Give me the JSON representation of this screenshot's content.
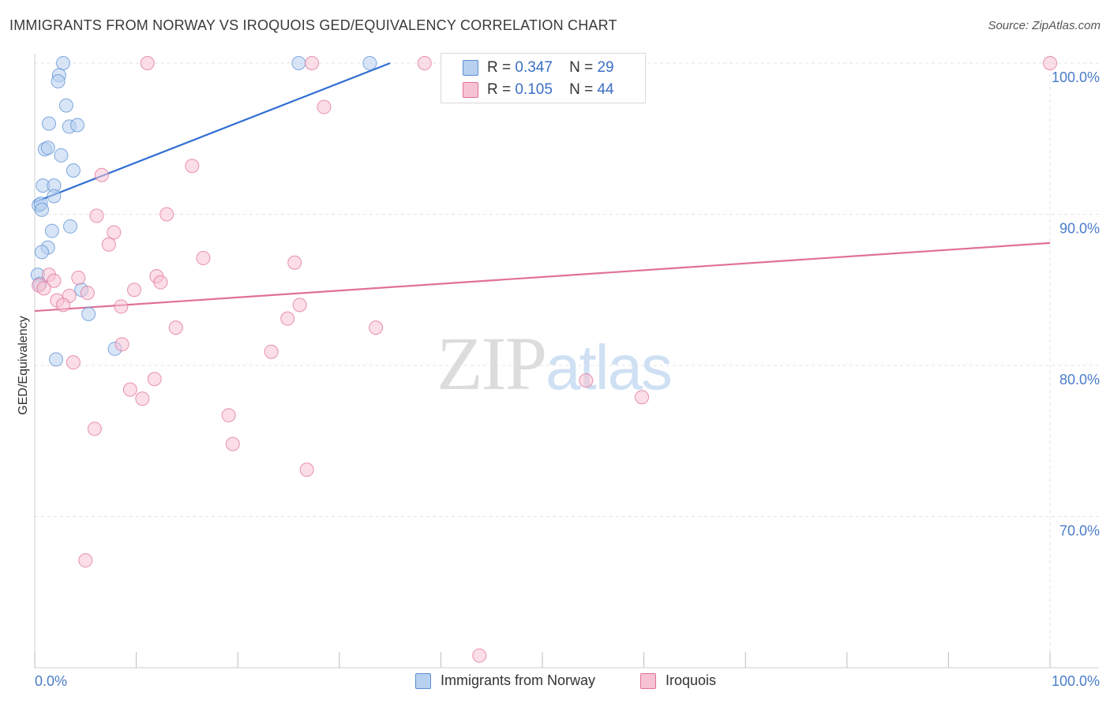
{
  "chart_data": {
    "type": "scatter",
    "title": "IMMIGRANTS FROM NORWAY VS IROQUOIS GED/EQUIVALENCY CORRELATION CHART",
    "source": "Source: ZipAtlas.com",
    "xlabel": "",
    "ylabel": "GED/Equivalency",
    "xlim": [
      0,
      100
    ],
    "ylim": [
      60,
      100
    ],
    "y_ticks": [
      {
        "value": 100,
        "label": "100.0%"
      },
      {
        "value": 90,
        "label": "90.0%"
      },
      {
        "value": 80,
        "label": "80.0%"
      },
      {
        "value": 70,
        "label": "70.0%"
      }
    ],
    "x_tick_labels": {
      "left": "0.0%",
      "right": "100.0%"
    },
    "legend_position": "top-center",
    "series": [
      {
        "name": "Immigrants from Norway",
        "color": "#5b8fd6",
        "fill": "#b7d0ef",
        "R": "0.347",
        "N": "29",
        "trend": {
          "x": [
            0,
            35
          ],
          "y": [
            90.8,
            100.0
          ]
        },
        "points": [
          {
            "x": 2.8,
            "y": 100.0
          },
          {
            "x": 26.0,
            "y": 100.0
          },
          {
            "x": 33.0,
            "y": 100.0
          },
          {
            "x": 2.4,
            "y": 99.2
          },
          {
            "x": 2.3,
            "y": 98.8
          },
          {
            "x": 3.1,
            "y": 97.2
          },
          {
            "x": 1.4,
            "y": 96.0
          },
          {
            "x": 3.4,
            "y": 95.8
          },
          {
            "x": 4.2,
            "y": 95.9
          },
          {
            "x": 1.0,
            "y": 94.3
          },
          {
            "x": 1.3,
            "y": 94.4
          },
          {
            "x": 2.6,
            "y": 93.9
          },
          {
            "x": 3.8,
            "y": 92.9
          },
          {
            "x": 0.8,
            "y": 91.9
          },
          {
            "x": 1.9,
            "y": 91.9
          },
          {
            "x": 1.9,
            "y": 91.2
          },
          {
            "x": 0.4,
            "y": 90.6
          },
          {
            "x": 0.6,
            "y": 90.7
          },
          {
            "x": 0.7,
            "y": 90.3
          },
          {
            "x": 3.5,
            "y": 89.2
          },
          {
            "x": 1.7,
            "y": 88.9
          },
          {
            "x": 1.3,
            "y": 87.8
          },
          {
            "x": 0.7,
            "y": 87.5
          },
          {
            "x": 0.3,
            "y": 86.0
          },
          {
            "x": 0.5,
            "y": 85.4
          },
          {
            "x": 4.6,
            "y": 85.0
          },
          {
            "x": 5.3,
            "y": 83.4
          },
          {
            "x": 7.9,
            "y": 81.1
          },
          {
            "x": 2.1,
            "y": 80.4
          }
        ]
      },
      {
        "name": "Iroquois",
        "color": "#e0709a",
        "fill": "#f7c3d4",
        "R": "0.105",
        "N": "44",
        "trend": {
          "x": [
            0,
            100
          ],
          "y": [
            83.6,
            88.1
          ]
        },
        "points": [
          {
            "x": 11.1,
            "y": 100.0
          },
          {
            "x": 27.3,
            "y": 100.0
          },
          {
            "x": 38.4,
            "y": 100.0
          },
          {
            "x": 100.0,
            "y": 100.0
          },
          {
            "x": 28.5,
            "y": 97.1
          },
          {
            "x": 15.5,
            "y": 93.2
          },
          {
            "x": 6.6,
            "y": 92.6
          },
          {
            "x": 6.1,
            "y": 89.9
          },
          {
            "x": 13.0,
            "y": 90.0
          },
          {
            "x": 7.8,
            "y": 88.8
          },
          {
            "x": 7.3,
            "y": 88.0
          },
          {
            "x": 16.6,
            "y": 87.1
          },
          {
            "x": 25.6,
            "y": 86.8
          },
          {
            "x": 1.4,
            "y": 86.0
          },
          {
            "x": 4.3,
            "y": 85.8
          },
          {
            "x": 12.0,
            "y": 85.9
          },
          {
            "x": 1.9,
            "y": 85.6
          },
          {
            "x": 12.4,
            "y": 85.5
          },
          {
            "x": 0.4,
            "y": 85.3
          },
          {
            "x": 0.9,
            "y": 85.1
          },
          {
            "x": 9.8,
            "y": 85.0
          },
          {
            "x": 3.4,
            "y": 84.6
          },
          {
            "x": 5.2,
            "y": 84.8
          },
          {
            "x": 2.2,
            "y": 84.3
          },
          {
            "x": 2.8,
            "y": 84.0
          },
          {
            "x": 8.5,
            "y": 83.9
          },
          {
            "x": 26.1,
            "y": 84.0
          },
          {
            "x": 24.9,
            "y": 83.1
          },
          {
            "x": 13.9,
            "y": 82.5
          },
          {
            "x": 33.6,
            "y": 82.5
          },
          {
            "x": 8.6,
            "y": 81.4
          },
          {
            "x": 23.3,
            "y": 80.9
          },
          {
            "x": 3.8,
            "y": 80.2
          },
          {
            "x": 11.8,
            "y": 79.1
          },
          {
            "x": 54.3,
            "y": 79.0
          },
          {
            "x": 9.4,
            "y": 78.4
          },
          {
            "x": 10.6,
            "y": 77.8
          },
          {
            "x": 59.8,
            "y": 77.9
          },
          {
            "x": 19.1,
            "y": 76.7
          },
          {
            "x": 5.9,
            "y": 75.8
          },
          {
            "x": 19.5,
            "y": 74.8
          },
          {
            "x": 26.8,
            "y": 73.1
          },
          {
            "x": 5.0,
            "y": 67.1
          },
          {
            "x": 43.8,
            "y": 60.8
          }
        ]
      }
    ]
  },
  "legend": {
    "r_label": "R =",
    "n_label": "N =",
    "rows": [
      {
        "r": "0.347",
        "n": "29"
      },
      {
        "r": "0.105",
        "n": "44"
      }
    ]
  },
  "bottom_legend": [
    "Immigrants from Norway",
    "Iroquois"
  ],
  "watermark": {
    "zip": "ZIP",
    "atlas": "atlas"
  }
}
